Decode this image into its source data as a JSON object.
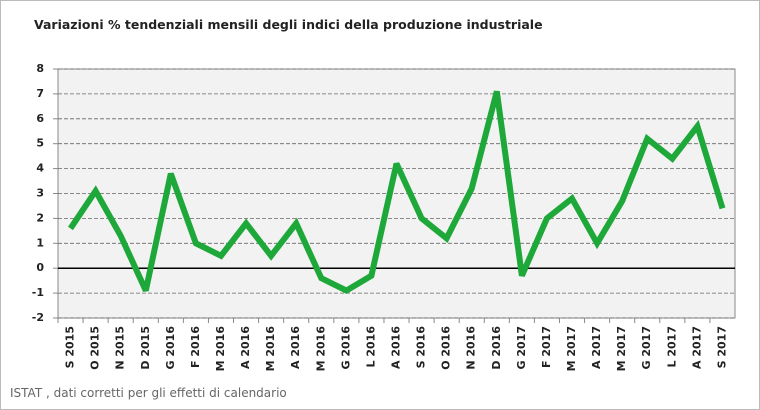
{
  "chart_data": {
    "type": "line",
    "title": "Variazioni % tendenziali mensili degli indici della produzione industriale",
    "source": "ISTAT , dati corretti per gli effetti di calendario",
    "categories": [
      "S 2015",
      "O 2015",
      "N 2015",
      "D 2015",
      "G 2016",
      "F 2016",
      "M 2016",
      "A 2016",
      "M 2016",
      "A 2016",
      "M 2016",
      "G 2016",
      "L 2016",
      "A 2016",
      "S 2016",
      "O 2016",
      "N 2016",
      "D 2016",
      "G 2017",
      "F 2017",
      "M 2017",
      "A 2017",
      "M 2017",
      "G 2017",
      "L 2017",
      "A 2017",
      "S 2017"
    ],
    "values": [
      1.6,
      3.1,
      1.3,
      -0.9,
      3.8,
      1.0,
      0.5,
      1.8,
      0.5,
      1.8,
      -0.4,
      -0.9,
      -0.3,
      4.2,
      2.0,
      1.2,
      3.2,
      7.1,
      -0.3,
      2.0,
      2.8,
      1.0,
      2.7,
      5.2,
      4.4,
      5.7,
      2.4
    ],
    "color": "#1ea83a",
    "ylim": [
      -2,
      8
    ],
    "yticks": [
      -2,
      -1,
      0,
      1,
      2,
      3,
      4,
      5,
      6,
      7,
      8
    ],
    "grid": true
  }
}
